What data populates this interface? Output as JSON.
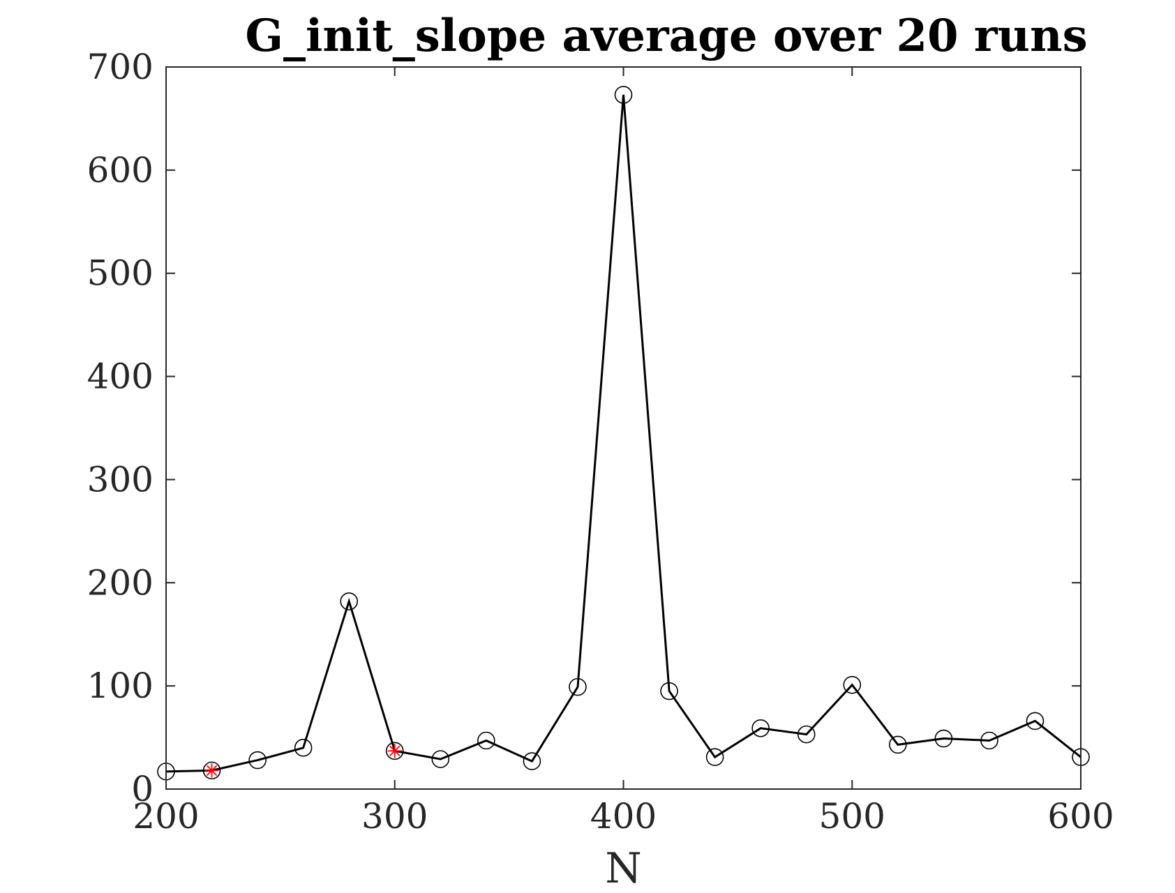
{
  "chart_data": {
    "type": "line",
    "title": "G_init_slope average over 20 runs",
    "xlabel": "N",
    "ylabel": "",
    "xlim": [
      200,
      600
    ],
    "ylim": [
      0,
      700
    ],
    "xticks": [
      200,
      300,
      400,
      500,
      600
    ],
    "yticks": [
      0,
      100,
      200,
      300,
      400,
      500,
      600,
      700
    ],
    "xtick_labels": [
      "200",
      "300",
      "400",
      "500",
      "600"
    ],
    "ytick_labels": [
      "0",
      "100",
      "200",
      "300",
      "400",
      "500",
      "600",
      "700"
    ],
    "grid": false,
    "legend": "none",
    "series": [
      {
        "x": [
          200,
          220,
          240,
          260,
          280,
          300,
          320,
          340,
          360,
          380,
          400,
          420,
          440,
          460,
          480,
          500,
          520,
          540,
          560,
          580,
          600
        ],
        "y": [
          17,
          18,
          28,
          40,
          182,
          37,
          29,
          47,
          27,
          99,
          673,
          95,
          31,
          59,
          53,
          101,
          43,
          49,
          47,
          66,
          31
        ],
        "line_color": "#000000",
        "marker": "circle"
      }
    ],
    "highlight_points": {
      "x": [
        220,
        300
      ],
      "y": [
        18,
        37
      ],
      "marker": "asterisk",
      "color": "#ff0000"
    }
  }
}
